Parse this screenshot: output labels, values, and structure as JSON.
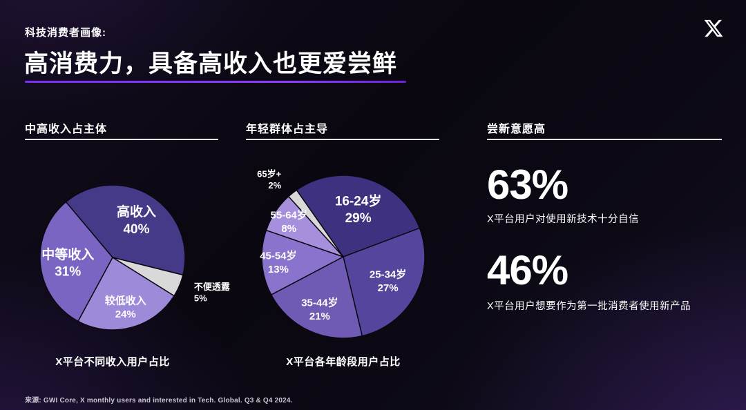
{
  "header": {
    "kicker": "科技消费者画像:",
    "title": "高消费力，具备高收入也更爱尝鲜"
  },
  "chart_data": [
    {
      "type": "pie",
      "title": "中高收入占主体",
      "caption": "X平台不同收入用户占比",
      "labels": [
        "高收入",
        "不便透露",
        "较低收入",
        "中等收入"
      ],
      "values": [
        40,
        5,
        24,
        31
      ],
      "unit": "%",
      "colors": [
        "#453a88",
        "#d9d9d9",
        "#9d8ad8",
        "#7a65c2"
      ],
      "start_angle": -40,
      "legend": "none",
      "data_labels": "inside, small slices outside"
    },
    {
      "type": "pie",
      "title": "年轻群体占主导",
      "caption": "X平台各年龄段用户占比",
      "labels": [
        "16-24岁",
        "25-34岁",
        "35-44岁",
        "45-54岁",
        "55-64岁",
        "65岁+"
      ],
      "values": [
        29,
        27,
        21,
        13,
        8,
        2
      ],
      "unit": "%",
      "colors": [
        "#3e3280",
        "#55459c",
        "#6f5ab4",
        "#8a73cc",
        "#a68fdd",
        "#d9d9d9"
      ],
      "start_angle": -35,
      "legend": "none",
      "data_labels": "inside, small slices outside"
    }
  ],
  "stats": {
    "title": "尝新意愿高",
    "items": [
      {
        "value": "63%",
        "desc": "X平台用户对使用新技术十分自信"
      },
      {
        "value": "46%",
        "desc": "X平台用户想要作为第一批消费者使用新产品"
      }
    ]
  },
  "footnote": "来源: GWI Core, X monthly users and interested in Tech. Global. Q3 & Q4 2024.",
  "colors": {
    "accent": "#7a2ff2",
    "background": "#0a0710",
    "undisclosed_gray": "#d9d9d9",
    "text": "#ffffff"
  }
}
